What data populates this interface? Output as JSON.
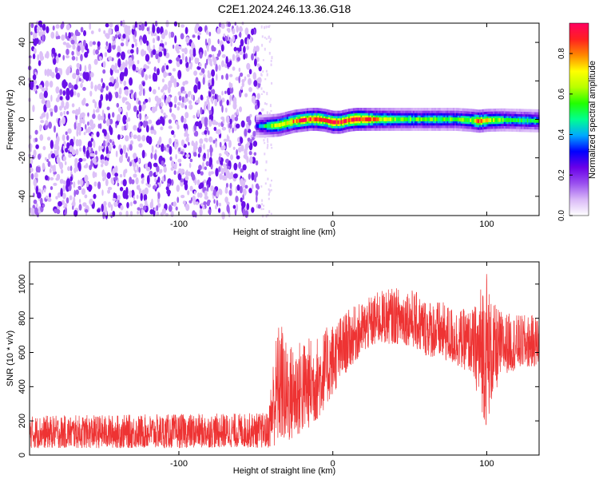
{
  "title": "C2E1.2024.246.13.36.G18",
  "chart_data": [
    {
      "type": "heatmap",
      "title": "C2E1.2024.246.13.36.G18",
      "xlabel": "Height of straight line (km)",
      "ylabel": "Frequency (Hz)",
      "xlim": [
        -197,
        134
      ],
      "ylim": [
        -50,
        50
      ],
      "x_ticks": [
        -100,
        0,
        100
      ],
      "y_ticks": [
        -40,
        -20,
        0,
        20,
        40
      ],
      "colorbar": {
        "label": "Normalized spectral amplitude",
        "range": [
          0,
          0.95
        ],
        "ticks": [
          0.0,
          0.2,
          0.4,
          0.6,
          0.8
        ],
        "colors": [
          "#ffffff",
          "#d9b8f7",
          "#9a50ef",
          "#6a00e8",
          "#0000ff",
          "#00aaff",
          "#00ff90",
          "#22ff00",
          "#b8ff00",
          "#ffff00",
          "#ff8800",
          "#ff2020",
          "#ff0060"
        ]
      },
      "noise_region_x": [
        -197,
        -47
      ],
      "noise_pulse_x": [
        -47,
        -40
      ],
      "signal_track": {
        "x": [
          -50,
          -45,
          -40,
          -35,
          -30,
          -25,
          -20,
          -15,
          -10,
          -5,
          0,
          5,
          10,
          15,
          20,
          30,
          40,
          50,
          60,
          70,
          80,
          90,
          95,
          100,
          110,
          120,
          134
        ],
        "center_freq": [
          -3.5,
          -3.5,
          -3.3,
          -3,
          -2,
          -1,
          -0.5,
          0,
          0,
          -0.5,
          -1.5,
          -1.5,
          -0.5,
          0,
          0,
          0,
          0,
          0,
          0,
          0,
          0,
          -0.5,
          -1,
          -0.5,
          -0.3,
          -0.5,
          -0.8
        ],
        "peak_amplitude": [
          0.3,
          0.45,
          0.6,
          0.7,
          0.72,
          0.8,
          0.9,
          0.85,
          0.9,
          0.8,
          0.95,
          0.85,
          0.9,
          0.95,
          0.9,
          0.7,
          0.6,
          0.55,
          0.55,
          0.55,
          0.55,
          0.6,
          0.85,
          0.7,
          0.55,
          0.5,
          0.5
        ]
      }
    },
    {
      "type": "line",
      "xlabel": "Height of straight line (km)",
      "ylabel": "SNR (10 * v/v)",
      "xlim": [
        -197,
        134
      ],
      "ylim": [
        0,
        1130
      ],
      "x_ticks": [
        -100,
        0,
        100
      ],
      "y_ticks": [
        0,
        200,
        400,
        600,
        800,
        1000
      ],
      "series_color": "#ee3333",
      "envelope": {
        "x": [
          -197,
          -150,
          -100,
          -60,
          -42,
          -38,
          -34,
          -30,
          -20,
          -10,
          0,
          10,
          20,
          30,
          40,
          50,
          60,
          70,
          80,
          90,
          94,
          97,
          100,
          103,
          110,
          120,
          134
        ],
        "low": [
          40,
          40,
          40,
          45,
          40,
          50,
          70,
          60,
          120,
          200,
          350,
          500,
          600,
          650,
          650,
          640,
          580,
          560,
          520,
          480,
          350,
          250,
          150,
          300,
          470,
          500,
          520
        ],
        "high": [
          230,
          235,
          240,
          245,
          250,
          650,
          820,
          650,
          680,
          700,
          780,
          850,
          900,
          960,
          980,
          980,
          920,
          900,
          860,
          850,
          900,
          1050,
          1120,
          900,
          840,
          820,
          820
        ]
      }
    }
  ]
}
